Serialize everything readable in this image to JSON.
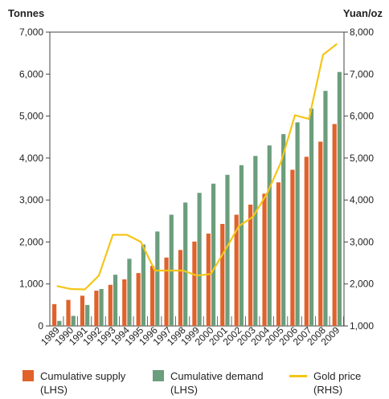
{
  "chart_data": {
    "type": "bar+line",
    "left_axis_label": "Tonnes",
    "right_axis_label": "Yuan/oz",
    "left_ylim": [
      0,
      7000
    ],
    "right_ylim": [
      1000,
      8000
    ],
    "left_ticks": [
      "0",
      "1,000",
      "2,000",
      "3,000",
      "4,000",
      "5,000",
      "6,000",
      "7,000"
    ],
    "right_ticks": [
      "1,000",
      "2,000",
      "3,000",
      "4,000",
      "5,000",
      "6,000",
      "7,000",
      "8,000"
    ],
    "categories": [
      "1989",
      "1990",
      "1991",
      "1992",
      "1993",
      "1994",
      "1995",
      "1996",
      "1997",
      "1998",
      "1999",
      "2000",
      "2001",
      "2002",
      "2003",
      "2004",
      "2005",
      "2006",
      "2007",
      "2008",
      "2009"
    ],
    "grid": false,
    "legend_position": "bottom",
    "series": [
      {
        "name": "Cumulative supply\n(LHS)",
        "type": "bar",
        "axis": "left",
        "color": "#e0622a",
        "values": [
          520,
          620,
          720,
          840,
          980,
          1110,
          1260,
          1430,
          1630,
          1810,
          2010,
          2200,
          2430,
          2650,
          2890,
          3150,
          3420,
          3720,
          4030,
          4390,
          4810
        ]
      },
      {
        "name": "Cumulative demand\n(LHS)",
        "type": "bar",
        "axis": "left",
        "color": "#6b9e7c",
        "values": [
          120,
          240,
          500,
          880,
          1220,
          1600,
          1940,
          2250,
          2650,
          2940,
          3170,
          3390,
          3600,
          3830,
          4050,
          4300,
          4570,
          4850,
          5180,
          5600,
          6050
        ]
      },
      {
        "name": "Gold price\n(RHS)",
        "type": "line",
        "axis": "right",
        "color": "#f5c518",
        "values": [
          1950,
          1880,
          1870,
          2200,
          3170,
          3170,
          3000,
          2320,
          2320,
          2320,
          2200,
          2240,
          2800,
          3380,
          3600,
          4150,
          4900,
          6020,
          5930,
          7460,
          7720
        ]
      }
    ]
  }
}
